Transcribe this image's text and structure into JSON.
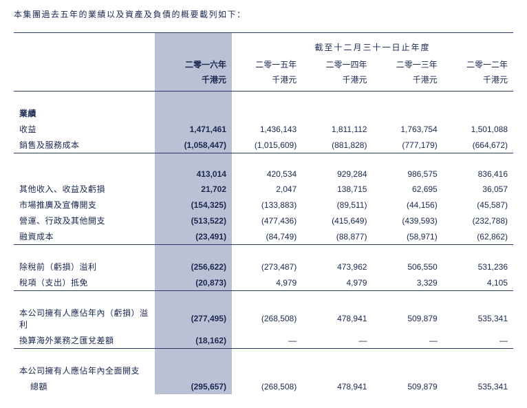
{
  "intro": "本集團過去五年的業績以及資產及負債的概要載列如下：",
  "section_header": "截至十二月三十一日止年度",
  "columns": {
    "years": [
      "二零一六年",
      "二零一五年",
      "二零一四年",
      "二零一三年",
      "二零一二年"
    ],
    "unit": "千港元"
  },
  "groups": [
    {
      "heading": "業績",
      "rows": [
        {
          "label": "收益",
          "values": [
            "1,471,461",
            "1,436,143",
            "1,811,112",
            "1,763,754",
            "1,501,088"
          ]
        },
        {
          "label": "銷售及服務成本",
          "values": [
            "(1,058,447)",
            "(1,015,609)",
            "(881,828)",
            "(777,179)",
            "(664,672)"
          ],
          "underline": true
        }
      ]
    },
    {
      "rows": [
        {
          "label": "",
          "values": [
            "413,014",
            "420,534",
            "929,284",
            "986,575",
            "836,416"
          ]
        },
        {
          "label": "其他收入、收益及虧損",
          "values": [
            "21,702",
            "2,047",
            "138,715",
            "62,695",
            "36,057"
          ]
        },
        {
          "label": "市場推廣及宣傳開支",
          "values": [
            "(154,325)",
            "(133,883)",
            "(89,511)",
            "(44,156)",
            "(45,587)"
          ]
        },
        {
          "label": "營運、行政及其他開支",
          "values": [
            "(513,522)",
            "(477,436)",
            "(415,649)",
            "(439,593)",
            "(232,788)"
          ]
        },
        {
          "label": "融資成本",
          "values": [
            "(23,491)",
            "(84,749)",
            "(88,877)",
            "(58,971)",
            "(62,862)"
          ],
          "underline": true
        }
      ]
    },
    {
      "rows": [
        {
          "label": "除稅前（虧損）溢利",
          "values": [
            "(256,622)",
            "(273,487)",
            "473,962",
            "506,550",
            "531,236"
          ]
        },
        {
          "label": "稅項（支出）抵免",
          "values": [
            "(20,873)",
            "4,979",
            "4,979",
            "3,329",
            "4,105"
          ],
          "underline": true
        }
      ]
    },
    {
      "rows": [
        {
          "label": "本公司擁有人應佔年內（虧損）溢利",
          "values": [
            "(277,495)",
            "(268,508)",
            "478,941",
            "509,879",
            "535,341"
          ]
        },
        {
          "label": "換算海外業務之匯兌差額",
          "values": [
            "(18,162)",
            "—",
            "—",
            "—",
            "—"
          ],
          "underline": true
        }
      ]
    },
    {
      "rows": [
        {
          "label": "本公司擁有人應佔年內全面開支",
          "values": [
            "",
            "",
            "",
            "",
            ""
          ]
        },
        {
          "label": "總額",
          "indent": true,
          "values": [
            "(295,657)",
            "(268,508)",
            "478,941",
            "509,879",
            "535,341"
          ]
        }
      ]
    }
  ],
  "colors": {
    "text": "#1a2750",
    "emph_bg": "#bac1d4",
    "border": "#2a3865",
    "page_bg": "#ffffff"
  },
  "fonts": {
    "base_size_pt": 12,
    "family": "Microsoft YaHei / PingFang SC"
  }
}
